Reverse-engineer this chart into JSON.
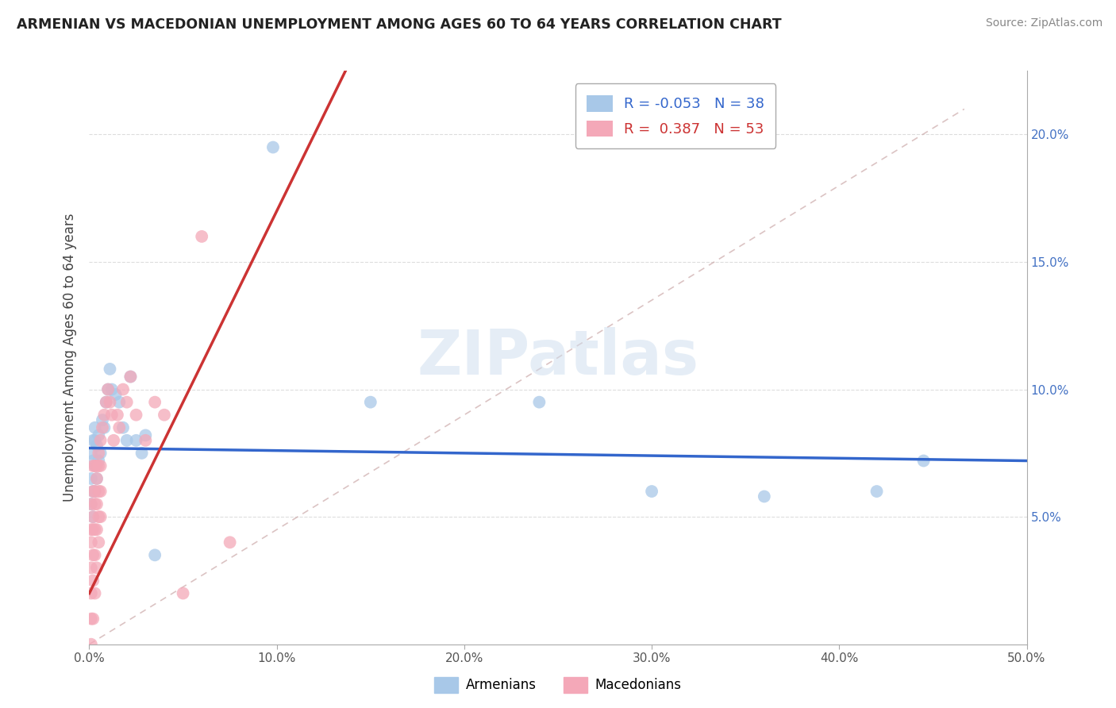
{
  "title": "ARMENIAN VS MACEDONIAN UNEMPLOYMENT AMONG AGES 60 TO 64 YEARS CORRELATION CHART",
  "source": "Source: ZipAtlas.com",
  "ylabel": "Unemployment Among Ages 60 to 64 years",
  "xlim": [
    0.0,
    0.5
  ],
  "ylim": [
    0.0,
    0.225
  ],
  "xticks": [
    0.0,
    0.1,
    0.2,
    0.3,
    0.4,
    0.5
  ],
  "xticklabels": [
    "0.0%",
    "10.0%",
    "20.0%",
    "30.0%",
    "40.0%",
    "50.0%"
  ],
  "yticks": [
    0.0,
    0.05,
    0.1,
    0.15,
    0.2
  ],
  "yticklabels_right": [
    "",
    "5.0%",
    "10.0%",
    "15.0%",
    "20.0%"
  ],
  "armenian_R": -0.053,
  "armenian_N": 38,
  "macedonian_R": 0.387,
  "macedonian_N": 53,
  "armenian_color": "#a8c8e8",
  "macedonian_color": "#f4a8b8",
  "armenian_line_color": "#3366cc",
  "macedonian_line_color": "#cc3333",
  "watermark_text": "ZIPatlas",
  "armenian_x": [
    0.001,
    0.001,
    0.001,
    0.002,
    0.002,
    0.002,
    0.002,
    0.003,
    0.003,
    0.003,
    0.003,
    0.004,
    0.004,
    0.005,
    0.005,
    0.006,
    0.007,
    0.008,
    0.009,
    0.01,
    0.011,
    0.012,
    0.014,
    0.016,
    0.018,
    0.02,
    0.022,
    0.025,
    0.028,
    0.03,
    0.035,
    0.098,
    0.15,
    0.24,
    0.3,
    0.36,
    0.42,
    0.445
  ],
  "armenian_y": [
    0.055,
    0.065,
    0.075,
    0.05,
    0.06,
    0.072,
    0.08,
    0.06,
    0.07,
    0.08,
    0.085,
    0.065,
    0.078,
    0.072,
    0.082,
    0.075,
    0.088,
    0.085,
    0.095,
    0.1,
    0.108,
    0.1,
    0.098,
    0.095,
    0.085,
    0.08,
    0.105,
    0.08,
    0.075,
    0.082,
    0.035,
    0.195,
    0.095,
    0.095,
    0.06,
    0.058,
    0.06,
    0.072
  ],
  "macedonian_x": [
    0.001,
    0.001,
    0.001,
    0.001,
    0.001,
    0.001,
    0.001,
    0.002,
    0.002,
    0.002,
    0.002,
    0.002,
    0.002,
    0.002,
    0.003,
    0.003,
    0.003,
    0.003,
    0.003,
    0.003,
    0.004,
    0.004,
    0.004,
    0.004,
    0.004,
    0.005,
    0.005,
    0.005,
    0.005,
    0.005,
    0.006,
    0.006,
    0.006,
    0.006,
    0.007,
    0.008,
    0.009,
    0.01,
    0.011,
    0.012,
    0.013,
    0.015,
    0.016,
    0.018,
    0.02,
    0.022,
    0.025,
    0.03,
    0.035,
    0.04,
    0.05,
    0.06,
    0.075
  ],
  "macedonian_y": [
    0.0,
    0.01,
    0.02,
    0.03,
    0.04,
    0.045,
    0.055,
    0.01,
    0.025,
    0.035,
    0.045,
    0.05,
    0.06,
    0.07,
    0.02,
    0.035,
    0.045,
    0.055,
    0.06,
    0.07,
    0.03,
    0.045,
    0.055,
    0.065,
    0.07,
    0.04,
    0.05,
    0.06,
    0.07,
    0.075,
    0.05,
    0.06,
    0.07,
    0.08,
    0.085,
    0.09,
    0.095,
    0.1,
    0.095,
    0.09,
    0.08,
    0.09,
    0.085,
    0.1,
    0.095,
    0.105,
    0.09,
    0.08,
    0.095,
    0.09,
    0.02,
    0.16,
    0.04
  ]
}
